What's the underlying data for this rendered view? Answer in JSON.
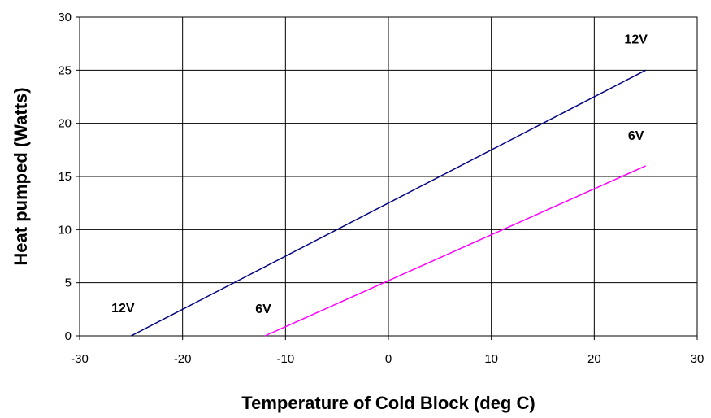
{
  "chart_data": {
    "type": "line",
    "title": "",
    "xlabel": "Temperature of Cold Block (deg C)",
    "ylabel": "Heat pumped (Watts)",
    "xlim": [
      -30,
      30
    ],
    "ylim": [
      0,
      30
    ],
    "x_ticks": [
      -30,
      -20,
      -10,
      0,
      10,
      20,
      30
    ],
    "y_ticks": [
      0,
      5,
      10,
      15,
      20,
      25,
      30
    ],
    "grid": true,
    "legend": "none",
    "series": [
      {
        "name": "12V",
        "color": "#000080",
        "x": [
          -25,
          25
        ],
        "values": [
          0,
          25
        ]
      },
      {
        "name": "6V",
        "color": "#ff00ff",
        "x": [
          -12,
          25
        ],
        "values": [
          0,
          16
        ]
      }
    ],
    "annotations": [
      {
        "text": "12V",
        "series": "12V",
        "near": "end"
      },
      {
        "text": "12V",
        "series": "12V",
        "near": "start"
      },
      {
        "text": "6V",
        "series": "6V",
        "near": "end"
      },
      {
        "text": "6V",
        "series": "6V",
        "near": "start"
      }
    ]
  }
}
